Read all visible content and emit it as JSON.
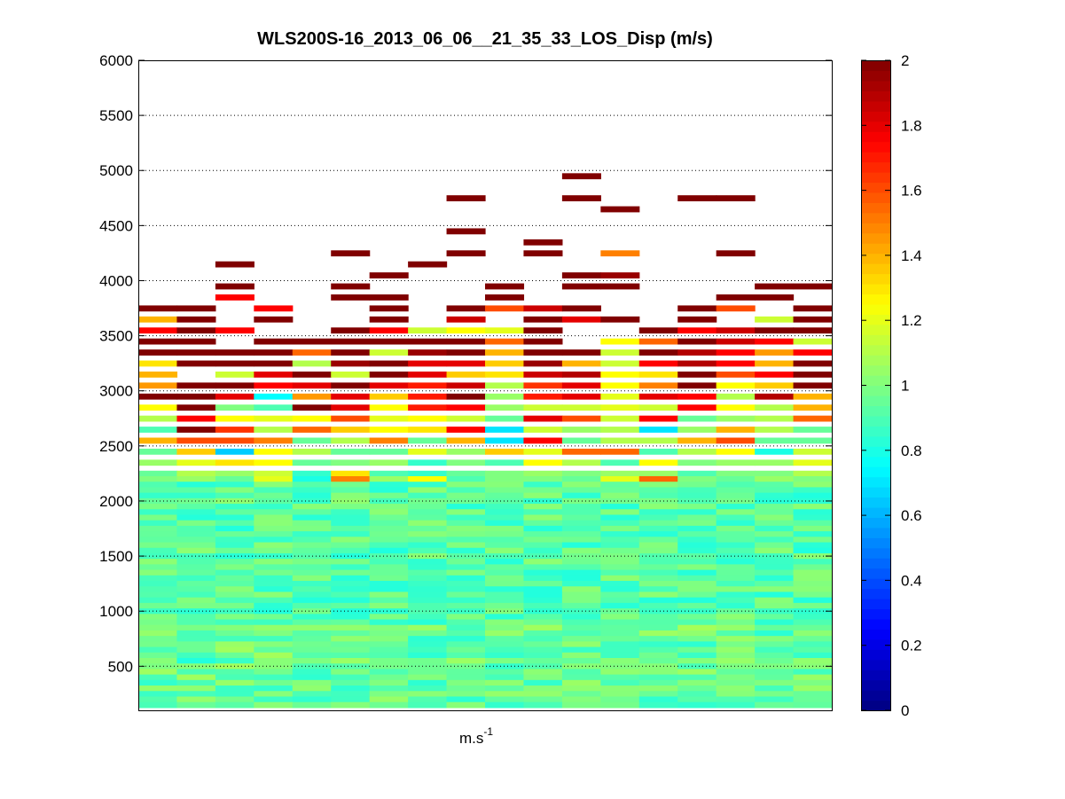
{
  "chart_data": {
    "type": "heatmap",
    "title": "WLS200S-16_2013_06_06__21_35_33_LOS_Disp (m/s)",
    "xlabel_base": "m.s",
    "xlabel_sup": "-1",
    "ylabel": "",
    "ylim": [
      100,
      6000
    ],
    "yticks": [
      500,
      1000,
      1500,
      2000,
      2500,
      3000,
      3500,
      4000,
      4500,
      5000,
      5500,
      6000
    ],
    "ytick_labels": [
      "500",
      "1000",
      "1500",
      "2000",
      "2500",
      "3000",
      "3500",
      "4000",
      "4500",
      "5000",
      "5500",
      "6000"
    ],
    "grid": "horizontal dotted",
    "colorscale": "jet",
    "clim": [
      0,
      2
    ],
    "colorbar_ticks": [
      0,
      0.2,
      0.4,
      0.6,
      0.8,
      1,
      1.2,
      1.4,
      1.6,
      1.8,
      2
    ],
    "colorbar_labels": [
      "0",
      "0.2",
      "0.4",
      "0.6",
      "0.8",
      "1",
      "1.2",
      "1.4",
      "1.6",
      "1.8",
      "2"
    ],
    "n_columns": 18,
    "row_height_m": 50,
    "upper_rows": [
      {
        "y": 4950,
        "values": [
          null,
          null,
          null,
          null,
          null,
          null,
          null,
          null,
          null,
          null,
          null,
          2.0,
          null,
          null,
          null,
          null,
          null,
          null
        ]
      },
      {
        "y": 4750,
        "values": [
          null,
          null,
          null,
          null,
          null,
          null,
          null,
          null,
          2.0,
          null,
          null,
          2.0,
          null,
          null,
          2.0,
          2.0,
          null,
          null
        ]
      },
      {
        "y": 4650,
        "values": [
          null,
          null,
          null,
          null,
          null,
          null,
          null,
          null,
          null,
          null,
          null,
          null,
          2.0,
          null,
          null,
          null,
          null,
          null
        ]
      },
      {
        "y": 4450,
        "values": [
          null,
          null,
          null,
          null,
          null,
          null,
          null,
          null,
          2.0,
          null,
          null,
          null,
          null,
          null,
          null,
          null,
          null,
          null
        ]
      },
      {
        "y": 4350,
        "values": [
          null,
          null,
          null,
          null,
          null,
          null,
          null,
          null,
          null,
          null,
          2.0,
          null,
          null,
          null,
          null,
          null,
          null,
          null
        ]
      },
      {
        "y": 4250,
        "values": [
          null,
          null,
          null,
          null,
          null,
          2.0,
          null,
          null,
          2.0,
          null,
          2.0,
          null,
          1.5,
          null,
          null,
          2.0,
          null,
          null
        ]
      },
      {
        "y": 4150,
        "values": [
          null,
          null,
          2.0,
          null,
          null,
          null,
          null,
          2.0,
          null,
          null,
          null,
          null,
          null,
          null,
          null,
          null,
          null,
          null
        ]
      },
      {
        "y": 4050,
        "values": [
          null,
          null,
          null,
          null,
          null,
          null,
          2.0,
          null,
          null,
          null,
          null,
          2.0,
          1.95,
          null,
          null,
          null,
          null,
          null
        ]
      },
      {
        "y": 3950,
        "values": [
          null,
          null,
          2.0,
          null,
          null,
          2.0,
          null,
          null,
          null,
          2.0,
          null,
          2.0,
          2.0,
          null,
          null,
          null,
          2.0,
          2.0
        ]
      },
      {
        "y": 3850,
        "values": [
          null,
          null,
          1.75,
          null,
          null,
          2.0,
          2.0,
          null,
          null,
          2.0,
          null,
          null,
          null,
          null,
          null,
          2.0,
          2.0,
          null
        ]
      },
      {
        "y": 3750,
        "values": [
          2.0,
          2.0,
          null,
          1.75,
          null,
          null,
          2.0,
          null,
          2.0,
          1.6,
          1.85,
          2.0,
          null,
          null,
          2.0,
          1.6,
          null,
          2.0
        ]
      },
      {
        "y": 3650,
        "values": [
          1.4,
          2.0,
          null,
          2.0,
          null,
          null,
          2.0,
          null,
          1.85,
          null,
          2.0,
          1.8,
          2.0,
          null,
          2.0,
          null,
          1.15,
          2.0
        ]
      },
      {
        "y": 3550,
        "values": [
          1.75,
          2.0,
          1.75,
          null,
          null,
          2.0,
          1.75,
          1.15,
          1.25,
          1.2,
          2.0,
          null,
          null,
          2.0,
          1.75,
          1.85,
          2.0,
          2.0
        ]
      },
      {
        "y": 3450,
        "values": [
          2.0,
          2.0,
          null,
          2.0,
          2.0,
          2.0,
          2.0,
          2.0,
          2.0,
          1.55,
          2.0,
          null,
          1.25,
          1.55,
          2.0,
          1.85,
          1.75,
          1.15
        ]
      },
      {
        "y": 3350,
        "values": [
          2.0,
          2.0,
          2.0,
          2.0,
          1.55,
          2.0,
          1.15,
          1.95,
          2.0,
          1.4,
          2.0,
          2.0,
          1.15,
          2.0,
          1.9,
          1.75,
          1.45,
          1.75
        ]
      },
      {
        "y": 3250,
        "values": [
          1.3,
          2.0,
          2.0,
          2.0,
          1.1,
          1.95,
          2.0,
          1.8,
          1.8,
          1.35,
          1.95,
          1.4,
          1.15,
          1.75,
          1.9,
          1.75,
          1.4,
          2.0
        ]
      },
      {
        "y": 3150,
        "values": [
          1.4,
          null,
          1.15,
          1.8,
          2.0,
          1.15,
          2.0,
          1.8,
          1.35,
          1.3,
          1.85,
          1.9,
          1.25,
          1.3,
          2.0,
          1.6,
          1.75,
          2.0
        ]
      },
      {
        "y": 3050,
        "values": [
          1.45,
          2.0,
          2.0,
          1.75,
          1.8,
          2.0,
          1.8,
          1.7,
          1.85,
          1.1,
          1.65,
          1.8,
          1.25,
          1.5,
          2.0,
          1.25,
          1.35,
          2.0
        ]
      },
      {
        "y": 2950,
        "values": [
          2.0,
          2.0,
          1.8,
          0.75,
          1.45,
          1.8,
          1.35,
          1.7,
          2.0,
          1.05,
          1.7,
          1.8,
          1.2,
          1.8,
          1.75,
          1.1,
          1.9,
          1.4
        ]
      },
      {
        "y": 2850,
        "values": [
          1.25,
          2.0,
          1.0,
          0.9,
          2.0,
          1.8,
          1.25,
          1.7,
          1.75,
          1.05,
          1.15,
          1.15,
          1.2,
          1.15,
          1.75,
          1.25,
          1.1,
          1.4
        ]
      },
      {
        "y": 2750,
        "values": [
          1.1,
          1.75,
          1.25,
          1.2,
          1.25,
          1.6,
          1.2,
          1.25,
          1.15,
          0.95,
          1.8,
          1.6,
          1.15,
          1.75,
          0.95,
          1.05,
          1.1,
          1.55
        ]
      },
      {
        "y": 2650,
        "values": [
          0.9,
          2.0,
          1.65,
          1.1,
          1.55,
          1.35,
          1.25,
          1.3,
          1.75,
          0.7,
          1.15,
          1.05,
          1.1,
          0.7,
          1.05,
          1.4,
          1.1,
          0.95
        ]
      },
      {
        "y": 2550,
        "values": [
          1.4,
          1.6,
          1.6,
          1.5,
          0.95,
          1.1,
          1.5,
          0.95,
          1.4,
          0.7,
          1.75,
          0.95,
          1.1,
          1.1,
          1.4,
          1.6,
          0.95,
          0.95
        ]
      },
      {
        "y": 2450,
        "values": [
          0.95,
          1.35,
          0.65,
          1.25,
          1.1,
          0.95,
          0.95,
          1.2,
          1.05,
          1.35,
          1.2,
          1.55,
          1.55,
          0.9,
          1.1,
          1.25,
          0.8,
          1.15
        ]
      },
      {
        "y": 2350,
        "values": [
          1.05,
          1.2,
          1.3,
          1.25,
          0.95,
          1.0,
          1.05,
          0.85,
          1.0,
          0.9,
          1.25,
          1.1,
          0.9,
          1.25,
          1.0,
          1.05,
          1.05,
          1.2
        ]
      },
      {
        "y": 2250,
        "values": [
          0.95,
          1.1,
          1.05,
          1.15,
          0.85,
          1.3,
          0.9,
          0.85,
          0.95,
          1.0,
          1.05,
          1.0,
          1.05,
          1.05,
          0.9,
          1.0,
          1.0,
          1.1
        ]
      },
      {
        "y": 2200,
        "values": [
          1.0,
          1.05,
          0.95,
          1.2,
          0.8,
          1.5,
          1.05,
          1.25,
          0.9,
          1.0,
          1.0,
          0.95,
          1.2,
          1.55,
          1.0,
          0.95,
          1.05,
          1.0
        ]
      }
    ]
  }
}
